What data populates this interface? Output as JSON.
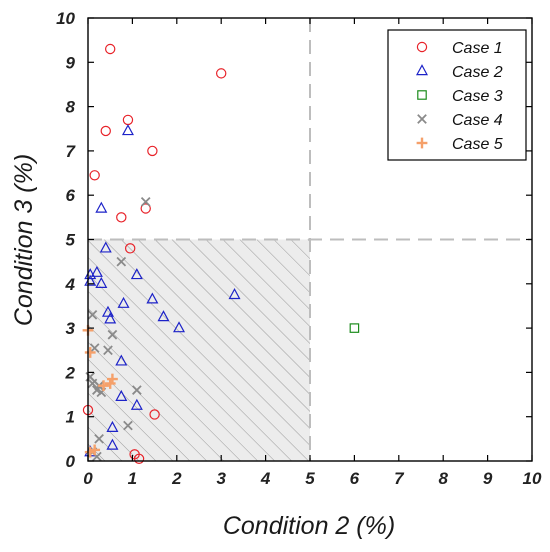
{
  "chart_data": {
    "type": "scatter",
    "title": "",
    "xlabel": "Condition 2 (%)",
    "ylabel": "Condition 3 (%)",
    "xlim": [
      0,
      10
    ],
    "ylim": [
      0,
      10
    ],
    "xticks": [
      "0",
      "1",
      "2",
      "3",
      "4",
      "5",
      "6",
      "7",
      "8",
      "9",
      "10"
    ],
    "yticks": [
      "0",
      "1",
      "2",
      "3",
      "4",
      "5",
      "6",
      "7",
      "8",
      "9",
      "10"
    ],
    "grid": false,
    "thresholds": {
      "x": 5,
      "y": 5
    },
    "shaded_region": {
      "x": [
        0,
        5
      ],
      "y": [
        0,
        5
      ],
      "fill": "#ececec",
      "hatch": true
    },
    "legend_position": "top-right",
    "series": [
      {
        "name": "Case 1",
        "marker": "circle",
        "color": "#e8232a",
        "points": [
          [
            0.5,
            9.3
          ],
          [
            3.0,
            8.75
          ],
          [
            0.9,
            7.7
          ],
          [
            0.4,
            7.45
          ],
          [
            1.45,
            7.0
          ],
          [
            0.15,
            6.45
          ],
          [
            1.3,
            5.7
          ],
          [
            0.75,
            5.5
          ],
          [
            0.95,
            4.8
          ],
          [
            0.0,
            1.15
          ],
          [
            1.5,
            1.05
          ],
          [
            1.05,
            0.15
          ],
          [
            1.15,
            0.05
          ]
        ]
      },
      {
        "name": "Case 2",
        "marker": "triangle",
        "color": "#1c22c8",
        "points": [
          [
            0.9,
            7.45
          ],
          [
            0.3,
            5.7
          ],
          [
            0.4,
            4.8
          ],
          [
            0.05,
            4.2
          ],
          [
            0.2,
            4.25
          ],
          [
            0.05,
            4.05
          ],
          [
            0.3,
            4.0
          ],
          [
            1.1,
            4.2
          ],
          [
            3.3,
            3.75
          ],
          [
            1.45,
            3.65
          ],
          [
            0.8,
            3.55
          ],
          [
            0.45,
            3.35
          ],
          [
            0.5,
            3.2
          ],
          [
            1.7,
            3.25
          ],
          [
            2.05,
            3.0
          ],
          [
            0.75,
            2.25
          ],
          [
            0.75,
            1.45
          ],
          [
            1.1,
            1.25
          ],
          [
            0.55,
            0.75
          ],
          [
            0.55,
            0.35
          ],
          [
            0.05,
            0.2
          ]
        ]
      },
      {
        "name": "Case 3",
        "marker": "square",
        "color": "#1c8c1c",
        "points": [
          [
            6.0,
            3.0
          ]
        ]
      },
      {
        "name": "Case 4",
        "marker": "x",
        "color": "#8a8a8a",
        "points": [
          [
            1.3,
            5.85
          ],
          [
            0.75,
            4.5
          ],
          [
            0.1,
            3.3
          ],
          [
            0.55,
            2.85
          ],
          [
            0.15,
            2.55
          ],
          [
            0.45,
            2.5
          ],
          [
            0.05,
            1.9
          ],
          [
            0.1,
            1.75
          ],
          [
            0.25,
            1.7
          ],
          [
            1.1,
            1.6
          ],
          [
            0.2,
            1.6
          ],
          [
            0.3,
            1.55
          ],
          [
            0.9,
            0.8
          ],
          [
            0.25,
            0.5
          ],
          [
            0.1,
            0.2
          ],
          [
            0.2,
            0.1
          ]
        ]
      },
      {
        "name": "Case 5",
        "marker": "plus",
        "color": "#f5a06a",
        "points": [
          [
            0.0,
            2.95
          ],
          [
            0.05,
            2.45
          ],
          [
            0.55,
            1.85
          ],
          [
            0.5,
            1.75
          ],
          [
            0.35,
            1.7
          ],
          [
            0.15,
            0.25
          ],
          [
            0.05,
            0.2
          ]
        ]
      }
    ]
  }
}
